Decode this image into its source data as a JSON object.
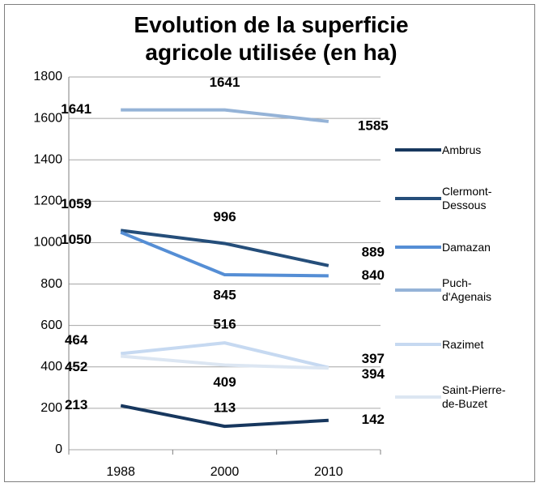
{
  "chart_data": {
    "type": "line",
    "title": "Evolution de la superficie agricole utilisée (en ha)",
    "categories": [
      "1988",
      "2000",
      "2010"
    ],
    "series": [
      {
        "name": "Ambrus",
        "color": "#17375e",
        "values": [
          213,
          113,
          142
        ]
      },
      {
        "name": "Clermont-Dessous",
        "color": "#254e7a",
        "values": [
          1059,
          996,
          889
        ]
      },
      {
        "name": "Damazan",
        "color": "#558ed5",
        "values": [
          1050,
          845,
          840
        ]
      },
      {
        "name": "Puch-d'Agenais",
        "color": "#95b3d7",
        "values": [
          1641,
          1641,
          1585
        ]
      },
      {
        "name": "Razimet",
        "color": "#c6d9f1",
        "values": [
          464,
          516,
          397
        ]
      },
      {
        "name": "Saint-Pierre-de-Buzet",
        "color": "#dce6f2",
        "values": [
          452,
          409,
          394
        ]
      }
    ],
    "ylim": [
      0,
      1800
    ],
    "yticks": [
      0,
      200,
      400,
      600,
      800,
      1000,
      1200,
      1400,
      1600,
      1800
    ],
    "grid": true,
    "legend": "right"
  }
}
